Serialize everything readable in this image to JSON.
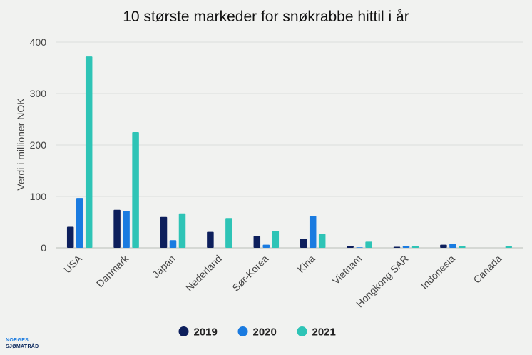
{
  "chart_data": {
    "type": "bar",
    "title": "10 største markeder for snøkrabbe hittil i år",
    "xlabel": "",
    "ylabel": "Verdi i millioner NOK",
    "ylim": [
      0,
      400
    ],
    "yticks": [
      0,
      100,
      200,
      300,
      400
    ],
    "grid": true,
    "legend_position": "bottom",
    "categories": [
      "USA",
      "Danmark",
      "Japan",
      "Nederland",
      "Sør-Korea",
      "Kina",
      "Vietnam",
      "Hongkong SAR",
      "Indonesia",
      "Canada"
    ],
    "series": [
      {
        "name": "2019",
        "color": "#0d1f5c",
        "values": [
          41,
          74,
          60,
          31,
          23,
          18,
          4,
          2,
          6,
          0
        ]
      },
      {
        "name": "2020",
        "color": "#1a7be0",
        "values": [
          97,
          72,
          15,
          0,
          6,
          62,
          1,
          4,
          8,
          0
        ]
      },
      {
        "name": "2021",
        "color": "#2ec4b6",
        "values": [
          372,
          225,
          67,
          58,
          33,
          27,
          12,
          3,
          3,
          3
        ]
      }
    ]
  },
  "logo": {
    "line1": "NORGES",
    "line2": "SJØMATRÅD"
  }
}
